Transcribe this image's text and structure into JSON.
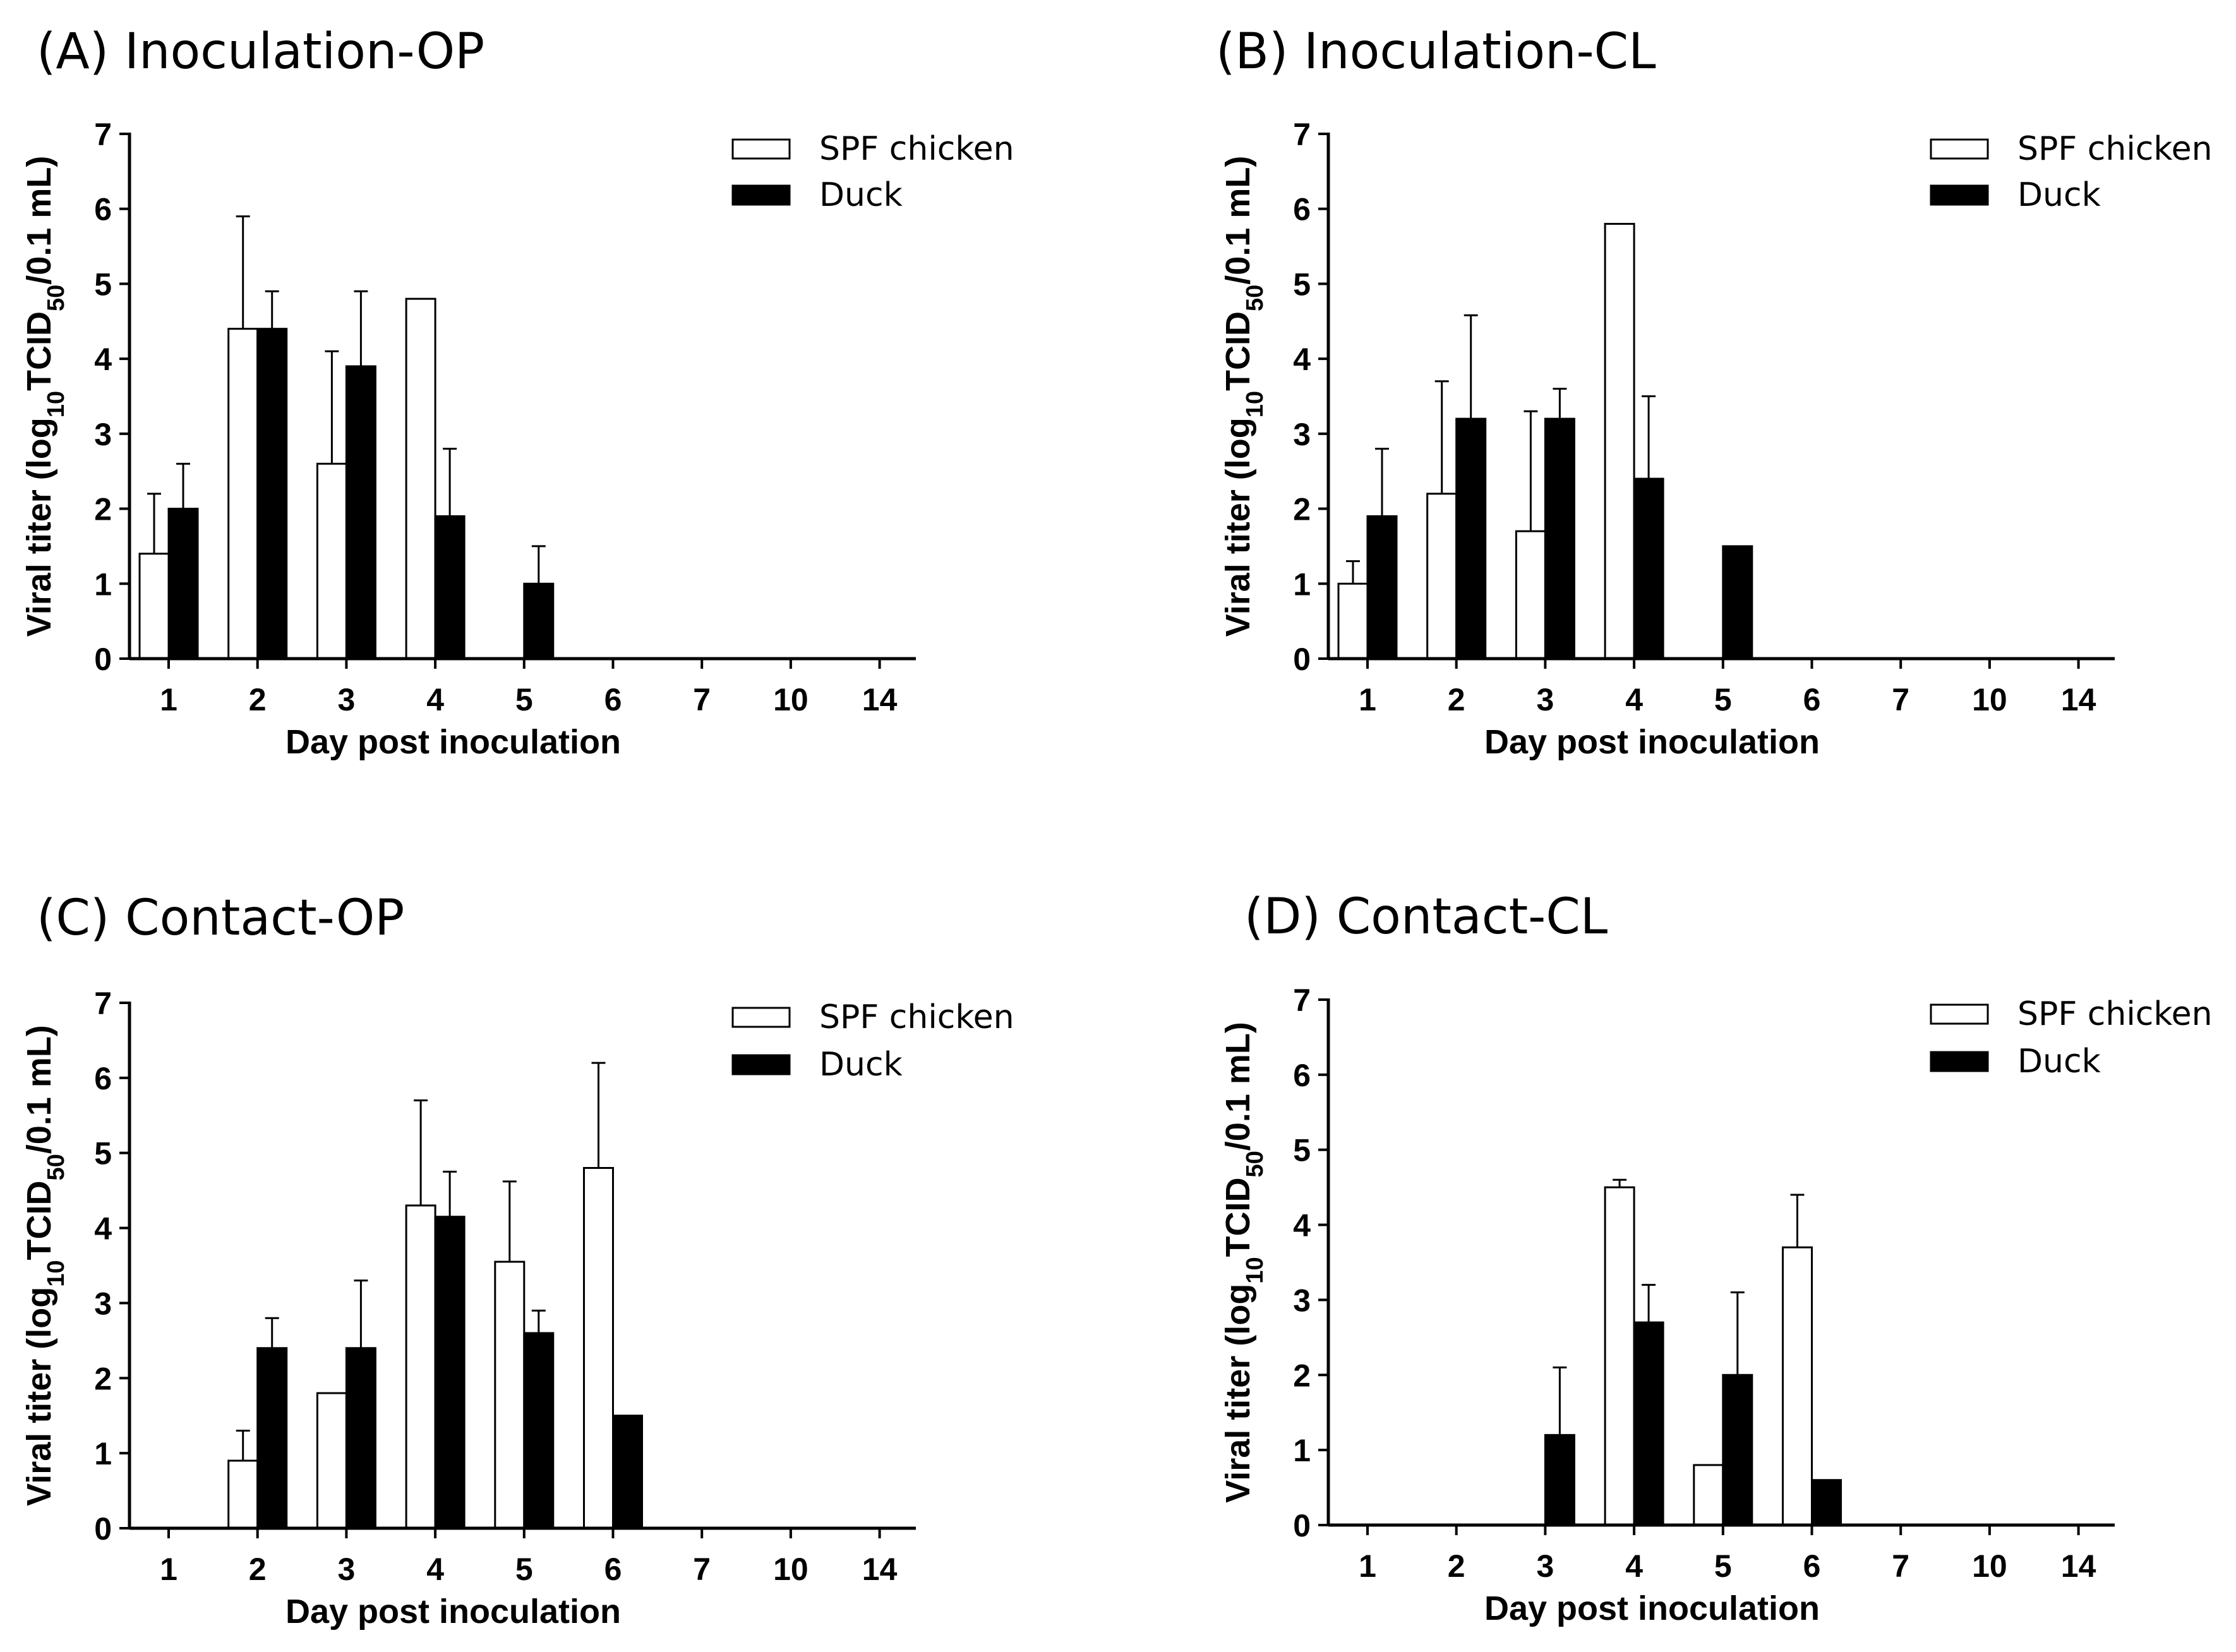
{
  "figure": {
    "series_colors": {
      "SPF chicken": "#ffffff",
      "Duck": "#000000"
    },
    "axis_color": "#000000"
  },
  "chart_data": [
    {
      "panel": "A",
      "title": "(A)  Inoculation-OP",
      "type": "bar",
      "xlabel": "Day post inoculation",
      "ylabel": "Viral titer (log10TCID50/0.1 mL)",
      "ylim": [
        0,
        7
      ],
      "yticks": [
        "0",
        "1",
        "2",
        "3",
        "4",
        "5",
        "6",
        "7"
      ],
      "categories": [
        "1",
        "2",
        "3",
        "4",
        "5",
        "6",
        "7",
        "10",
        "14"
      ],
      "legend": [
        "SPF chicken",
        "Duck"
      ],
      "series": [
        {
          "name": "SPF chicken",
          "values": [
            1.4,
            4.4,
            2.6,
            4.8,
            0,
            0,
            0,
            0,
            0
          ],
          "errors": [
            0.8,
            1.5,
            1.5,
            0,
            0,
            0,
            0,
            0,
            0
          ]
        },
        {
          "name": "Duck",
          "values": [
            2.0,
            4.4,
            3.9,
            1.9,
            1.0,
            0,
            0,
            0,
            0
          ],
          "errors": [
            0.6,
            0.5,
            1.0,
            0.9,
            0.5,
            0,
            0,
            0,
            0
          ]
        }
      ]
    },
    {
      "panel": "B",
      "title": "(B)  Inoculation-CL",
      "type": "bar",
      "xlabel": "Day post inoculation",
      "ylabel": "Viral titer (log10TCID50/0.1 mL)",
      "ylim": [
        0,
        7
      ],
      "yticks": [
        "0",
        "1",
        "2",
        "3",
        "4",
        "5",
        "6",
        "7"
      ],
      "categories": [
        "1",
        "2",
        "3",
        "4",
        "5",
        "6",
        "7",
        "10",
        "14"
      ],
      "legend": [
        "SPF chicken",
        "Duck"
      ],
      "series": [
        {
          "name": "SPF chicken",
          "values": [
            1.0,
            2.2,
            1.7,
            5.8,
            0,
            0,
            0,
            0,
            0
          ],
          "errors": [
            0.3,
            1.5,
            1.6,
            0,
            0,
            0,
            0,
            0,
            0
          ]
        },
        {
          "name": "Duck",
          "values": [
            1.9,
            3.2,
            3.2,
            2.4,
            1.5,
            0,
            0,
            0,
            0
          ],
          "errors": [
            0.9,
            1.38,
            0.4,
            1.1,
            0,
            0,
            0,
            0,
            0
          ]
        }
      ]
    },
    {
      "panel": "C",
      "title": "(C)  Contact-OP",
      "type": "bar",
      "xlabel": "Day post inoculation",
      "ylabel": "Viral titer (log10TCID50/0.1 mL)",
      "ylim": [
        0,
        7
      ],
      "yticks": [
        "0",
        "1",
        "2",
        "3",
        "4",
        "5",
        "6",
        "7"
      ],
      "categories": [
        "1",
        "2",
        "3",
        "4",
        "5",
        "6",
        "7",
        "10",
        "14"
      ],
      "legend": [
        "SPF chicken",
        "Duck"
      ],
      "series": [
        {
          "name": "SPF chicken",
          "values": [
            0,
            0.9,
            1.8,
            4.3,
            3.55,
            4.8,
            0,
            0,
            0
          ],
          "errors": [
            0,
            0.4,
            0,
            1.4,
            1.07,
            1.4,
            0,
            0,
            0
          ]
        },
        {
          "name": "Duck",
          "values": [
            0,
            2.4,
            2.4,
            4.15,
            2.6,
            1.5,
            0,
            0,
            0
          ],
          "errors": [
            0,
            0.4,
            0.9,
            0.6,
            0.3,
            0,
            0,
            0,
            0
          ]
        }
      ]
    },
    {
      "panel": "D",
      "title": "(D)  Contact-CL",
      "type": "bar",
      "xlabel": "Day post inoculation",
      "ylabel": "Viral titer (log10TCID50/0.1 mL)",
      "ylim": [
        0,
        7
      ],
      "yticks": [
        "0",
        "1",
        "2",
        "3",
        "4",
        "5",
        "6",
        "7"
      ],
      "categories": [
        "1",
        "2",
        "3",
        "4",
        "5",
        "6",
        "7",
        "10",
        "14"
      ],
      "legend": [
        "SPF chicken",
        "Duck"
      ],
      "series": [
        {
          "name": "SPF chicken",
          "values": [
            0,
            0,
            0,
            4.5,
            0.8,
            3.7,
            0,
            0,
            0
          ],
          "errors": [
            0,
            0,
            0,
            0.1,
            0,
            0.7,
            0,
            0,
            0
          ]
        },
        {
          "name": "Duck",
          "values": [
            0,
            0,
            1.2,
            2.7,
            2.0,
            0.6,
            0,
            0,
            0
          ],
          "errors": [
            0,
            0,
            0.9,
            0.5,
            1.1,
            0,
            0,
            0,
            0
          ]
        }
      ]
    }
  ]
}
